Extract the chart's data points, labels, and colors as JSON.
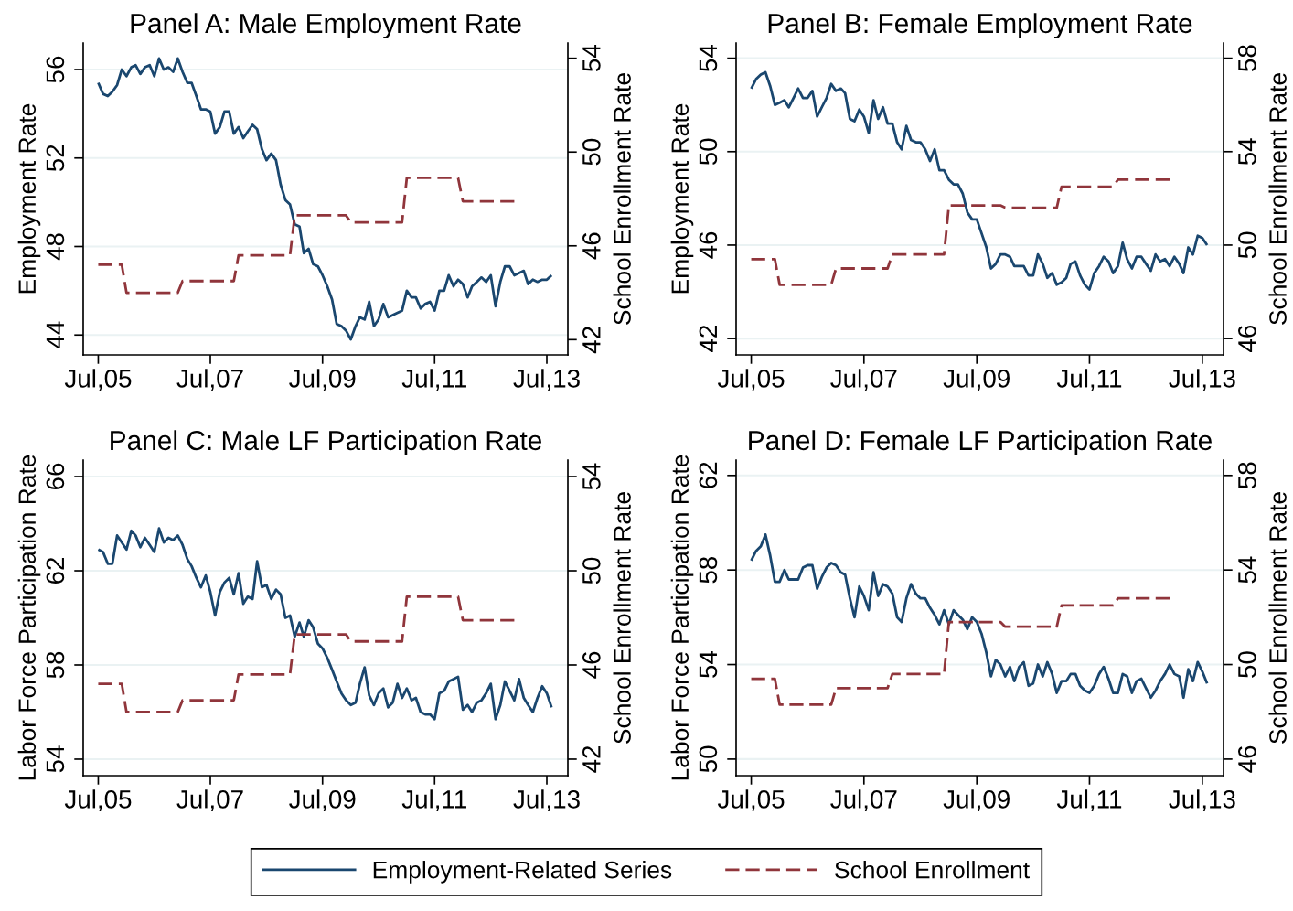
{
  "chart_data": [
    {
      "type": "line",
      "title": "Panel A: Male Employment Rate",
      "ylabel": "Employment Rate",
      "y2label": "School Enrollment Rate",
      "grid": "y",
      "legend": "bottom",
      "x": [
        "2005-07",
        "2005-08",
        "2005-09",
        "2005-10",
        "2005-11",
        "2005-12",
        "2006-01",
        "2006-02",
        "2006-03",
        "2006-04",
        "2006-05",
        "2006-06",
        "2006-07",
        "2006-08",
        "2006-09",
        "2006-10",
        "2006-11",
        "2006-12",
        "2007-01",
        "2007-02",
        "2007-03",
        "2007-04",
        "2007-05",
        "2007-06",
        "2007-07",
        "2007-08",
        "2007-09",
        "2007-10",
        "2007-11",
        "2007-12",
        "2008-01",
        "2008-02",
        "2008-03",
        "2008-04",
        "2008-05",
        "2008-06",
        "2008-07",
        "2008-08",
        "2008-09",
        "2008-10",
        "2008-11",
        "2008-12",
        "2009-01",
        "2009-02",
        "2009-03",
        "2009-04",
        "2009-05",
        "2009-06",
        "2009-07",
        "2009-08",
        "2009-09",
        "2009-10",
        "2009-11",
        "2009-12",
        "2010-01",
        "2010-02",
        "2010-03",
        "2010-04",
        "2010-05",
        "2010-06",
        "2010-07",
        "2010-08",
        "2010-09",
        "2010-10",
        "2010-11",
        "2010-12",
        "2011-01",
        "2011-02",
        "2011-03",
        "2011-04",
        "2011-05",
        "2011-06",
        "2011-07",
        "2011-08",
        "2011-09",
        "2011-10",
        "2011-11",
        "2011-12",
        "2012-01",
        "2012-02",
        "2012-03",
        "2012-04",
        "2012-05",
        "2012-06",
        "2012-07",
        "2012-08",
        "2012-09",
        "2012-10",
        "2012-11",
        "2012-12",
        "2013-01",
        "2013-02",
        "2013-03",
        "2013-04",
        "2013-05",
        "2013-06",
        "2013-07",
        "2013-08"
      ],
      "xlim": [
        "2005-03-25",
        "2013-11-15"
      ],
      "xticks": [
        {
          "value": "2005-07",
          "label": "Jul,05"
        },
        {
          "value": "2007-07",
          "label": "Jul,07"
        },
        {
          "value": "2009-07",
          "label": "Jul,09"
        },
        {
          "value": "2011-07",
          "label": "Jul,11"
        },
        {
          "value": "2013-07",
          "label": "Jul,13"
        }
      ],
      "ylim": [
        43.1,
        57.2
      ],
      "yticks": [
        44,
        48,
        52,
        56
      ],
      "y2lim": [
        41.35,
        54.65
      ],
      "y2ticks": [
        42,
        46,
        50,
        54
      ],
      "series": [
        {
          "name": "Employment-Related Series",
          "color": "#1a476f",
          "line_style": "solid",
          "values": [
            55.4,
            54.9,
            54.8,
            55.0,
            55.3,
            56.0,
            55.7,
            56.1,
            56.2,
            55.8,
            56.1,
            56.2,
            55.7,
            56.5,
            56.0,
            56.1,
            55.9,
            56.5,
            55.9,
            55.4,
            55.4,
            54.8,
            54.2,
            54.2,
            54.1,
            53.1,
            53.4,
            54.1,
            54.1,
            53.1,
            53.4,
            52.9,
            53.2,
            53.5,
            53.3,
            52.4,
            51.9,
            52.2,
            51.9,
            50.8,
            50.1,
            49.9,
            49.0,
            48.9,
            47.7,
            47.9,
            47.2,
            47.1,
            46.7,
            46.2,
            45.6,
            44.5,
            44.4,
            44.2,
            43.8,
            44.4,
            44.8,
            44.7,
            45.5,
            44.4,
            44.7,
            45.4,
            44.8,
            44.9,
            45.0,
            45.1,
            46.0,
            45.7,
            45.7,
            45.2,
            45.4,
            45.5,
            45.1,
            46.0,
            46.0,
            46.7,
            46.2,
            46.5,
            46.3,
            45.7,
            46.2,
            46.4,
            46.6,
            46.4,
            46.7,
            45.3,
            46.4,
            47.1,
            47.1,
            46.7,
            46.8,
            46.9,
            46.3,
            46.5,
            46.4,
            46.5,
            46.5,
            46.7
          ]
        },
        {
          "name": "School Enrollment",
          "color": "#90353b",
          "line_style": "dashed",
          "axis": "y2",
          "x": [
            "2005-07",
            "2005-12",
            "2006-01",
            "2006-12",
            "2007-01",
            "2007-12",
            "2008-01",
            "2008-12",
            "2009-01",
            "2009-12",
            "2010-01",
            "2010-12",
            "2011-01",
            "2011-12",
            "2012-01",
            "2012-12"
          ],
          "values": [
            45.2,
            45.2,
            44.0,
            44.0,
            44.5,
            44.5,
            45.6,
            45.6,
            47.3,
            47.3,
            47.0,
            47.0,
            48.9,
            48.9,
            47.9,
            47.9
          ]
        }
      ]
    },
    {
      "type": "line",
      "title": "Panel B: Female Employment Rate",
      "ylabel": "Employment Rate",
      "y2label": "School Enrollment Rate",
      "grid": "y",
      "x": [
        "2005-07",
        "2005-08",
        "2005-09",
        "2005-10",
        "2005-11",
        "2005-12",
        "2006-01",
        "2006-02",
        "2006-03",
        "2006-04",
        "2006-05",
        "2006-06",
        "2006-07",
        "2006-08",
        "2006-09",
        "2006-10",
        "2006-11",
        "2006-12",
        "2007-01",
        "2007-02",
        "2007-03",
        "2007-04",
        "2007-05",
        "2007-06",
        "2007-07",
        "2007-08",
        "2007-09",
        "2007-10",
        "2007-11",
        "2007-12",
        "2008-01",
        "2008-02",
        "2008-03",
        "2008-04",
        "2008-05",
        "2008-06",
        "2008-07",
        "2008-08",
        "2008-09",
        "2008-10",
        "2008-11",
        "2008-12",
        "2009-01",
        "2009-02",
        "2009-03",
        "2009-04",
        "2009-05",
        "2009-06",
        "2009-07",
        "2009-08",
        "2009-09",
        "2009-10",
        "2009-11",
        "2009-12",
        "2010-01",
        "2010-02",
        "2010-03",
        "2010-04",
        "2010-05",
        "2010-06",
        "2010-07",
        "2010-08",
        "2010-09",
        "2010-10",
        "2010-11",
        "2010-12",
        "2011-01",
        "2011-02",
        "2011-03",
        "2011-04",
        "2011-05",
        "2011-06",
        "2011-07",
        "2011-08",
        "2011-09",
        "2011-10",
        "2011-11",
        "2011-12",
        "2012-01",
        "2012-02",
        "2012-03",
        "2012-04",
        "2012-05",
        "2012-06",
        "2012-07",
        "2012-08",
        "2012-09",
        "2012-10",
        "2012-11",
        "2012-12",
        "2013-01",
        "2013-02",
        "2013-03",
        "2013-04",
        "2013-05",
        "2013-06",
        "2013-07",
        "2013-08"
      ],
      "xlim": [
        "2005-03-25",
        "2013-11-15"
      ],
      "xticks": [
        {
          "value": "2005-07",
          "label": "Jul,05"
        },
        {
          "value": "2007-07",
          "label": "Jul,07"
        },
        {
          "value": "2009-07",
          "label": "Jul,09"
        },
        {
          "value": "2011-07",
          "label": "Jul,11"
        },
        {
          "value": "2013-07",
          "label": "Jul,13"
        }
      ],
      "ylim": [
        41.3,
        54.65
      ],
      "yticks": [
        42,
        46,
        50,
        54
      ],
      "y2lim": [
        45.3,
        58.65
      ],
      "y2ticks": [
        46,
        50,
        54,
        58
      ],
      "series": [
        {
          "color": "#1a476f",
          "line_style": "solid",
          "values": [
            52.7,
            53.1,
            53.3,
            53.4,
            52.8,
            52.0,
            52.1,
            52.2,
            51.9,
            52.3,
            52.7,
            52.3,
            52.3,
            52.6,
            51.5,
            51.9,
            52.3,
            52.9,
            52.6,
            52.7,
            52.5,
            51.4,
            51.3,
            51.8,
            51.5,
            50.8,
            52.2,
            51.4,
            51.9,
            51.2,
            51.2,
            50.4,
            50.1,
            51.1,
            50.5,
            50.4,
            50.4,
            50.1,
            49.6,
            50.1,
            49.2,
            49.2,
            48.8,
            48.6,
            48.6,
            48.2,
            47.4,
            47.1,
            47.1,
            46.5,
            45.9,
            45.0,
            45.2,
            45.6,
            45.6,
            45.5,
            45.1,
            45.1,
            45.1,
            44.7,
            44.7,
            45.6,
            45.2,
            44.6,
            44.8,
            44.3,
            44.4,
            44.6,
            45.2,
            45.3,
            44.7,
            44.3,
            44.1,
            44.8,
            45.1,
            45.5,
            45.3,
            44.8,
            45.1,
            46.1,
            45.4,
            45.0,
            45.5,
            45.5,
            45.2,
            44.9,
            45.6,
            45.3,
            45.4,
            45.1,
            45.5,
            45.2,
            44.8,
            45.9,
            45.6,
            46.4,
            46.3,
            46.0
          ]
        },
        {
          "color": "#90353b",
          "line_style": "dashed",
          "axis": "y2",
          "x": [
            "2005-07",
            "2005-12",
            "2006-01",
            "2006-12",
            "2007-01",
            "2007-12",
            "2008-01",
            "2008-12",
            "2009-01",
            "2009-12",
            "2010-01",
            "2010-12",
            "2011-01",
            "2011-12",
            "2012-01",
            "2012-12"
          ],
          "values": [
            49.4,
            49.4,
            48.3,
            48.3,
            49.0,
            49.0,
            49.6,
            49.6,
            51.7,
            51.7,
            51.6,
            51.6,
            52.5,
            52.5,
            52.8,
            52.8
          ]
        }
      ]
    },
    {
      "type": "line",
      "title": "Panel C: Male LF Participation Rate",
      "ylabel": "Labor Force Participation Rate",
      "y2label": "School Enrollment Rate",
      "grid": "y",
      "x": [
        "2005-07",
        "2005-08",
        "2005-09",
        "2005-10",
        "2005-11",
        "2005-12",
        "2006-01",
        "2006-02",
        "2006-03",
        "2006-04",
        "2006-05",
        "2006-06",
        "2006-07",
        "2006-08",
        "2006-09",
        "2006-10",
        "2006-11",
        "2006-12",
        "2007-01",
        "2007-02",
        "2007-03",
        "2007-04",
        "2007-05",
        "2007-06",
        "2007-07",
        "2007-08",
        "2007-09",
        "2007-10",
        "2007-11",
        "2007-12",
        "2008-01",
        "2008-02",
        "2008-03",
        "2008-04",
        "2008-05",
        "2008-06",
        "2008-07",
        "2008-08",
        "2008-09",
        "2008-10",
        "2008-11",
        "2008-12",
        "2009-01",
        "2009-02",
        "2009-03",
        "2009-04",
        "2009-05",
        "2009-06",
        "2009-07",
        "2009-08",
        "2009-09",
        "2009-10",
        "2009-11",
        "2009-12",
        "2010-01",
        "2010-02",
        "2010-03",
        "2010-04",
        "2010-05",
        "2010-06",
        "2010-07",
        "2010-08",
        "2010-09",
        "2010-10",
        "2010-11",
        "2010-12",
        "2011-01",
        "2011-02",
        "2011-03",
        "2011-04",
        "2011-05",
        "2011-06",
        "2011-07",
        "2011-08",
        "2011-09",
        "2011-10",
        "2011-11",
        "2011-12",
        "2012-01",
        "2012-02",
        "2012-03",
        "2012-04",
        "2012-05",
        "2012-06",
        "2012-07",
        "2012-08",
        "2012-09",
        "2012-10",
        "2012-11",
        "2012-12",
        "2013-01",
        "2013-02",
        "2013-03",
        "2013-04",
        "2013-05",
        "2013-06",
        "2013-07",
        "2013-08"
      ],
      "xlim": [
        "2005-03-25",
        "2013-11-15"
      ],
      "xticks": [
        {
          "value": "2005-07",
          "label": "Jul,05"
        },
        {
          "value": "2007-07",
          "label": "Jul,07"
        },
        {
          "value": "2009-07",
          "label": "Jul,09"
        },
        {
          "value": "2011-07",
          "label": "Jul,11"
        },
        {
          "value": "2013-07",
          "label": "Jul,13"
        }
      ],
      "ylim": [
        53.3,
        66.7
      ],
      "yticks": [
        54,
        58,
        62,
        66
      ],
      "y2lim": [
        41.3,
        54.7
      ],
      "y2ticks": [
        42,
        46,
        50,
        54
      ],
      "series": [
        {
          "color": "#1a476f",
          "line_style": "solid",
          "values": [
            62.9,
            62.8,
            62.3,
            62.3,
            63.5,
            63.2,
            62.9,
            63.7,
            63.5,
            63.0,
            63.4,
            63.1,
            62.8,
            63.8,
            63.2,
            63.4,
            63.3,
            63.5,
            63.1,
            62.5,
            62.2,
            61.7,
            61.3,
            61.8,
            61.1,
            60.1,
            61.1,
            61.5,
            61.7,
            61.0,
            61.9,
            60.6,
            60.9,
            60.8,
            62.4,
            61.3,
            61.4,
            60.8,
            61.2,
            61.0,
            60.0,
            60.1,
            59.2,
            59.8,
            59.2,
            59.9,
            59.6,
            58.9,
            58.7,
            58.3,
            57.8,
            57.3,
            56.8,
            56.5,
            56.3,
            56.4,
            57.2,
            57.9,
            56.7,
            56.3,
            56.8,
            57.0,
            56.2,
            56.4,
            57.2,
            56.6,
            57.0,
            56.5,
            56.6,
            56.0,
            55.9,
            55.9,
            55.7,
            56.8,
            56.9,
            57.3,
            57.4,
            57.5,
            56.1,
            56.3,
            56.0,
            56.4,
            56.5,
            56.8,
            57.2,
            55.7,
            56.3,
            57.3,
            56.9,
            56.5,
            57.4,
            56.6,
            56.3,
            56.0,
            56.6,
            57.1,
            56.8,
            56.2
          ]
        },
        {
          "color": "#90353b",
          "line_style": "dashed",
          "axis": "y2",
          "x": [
            "2005-07",
            "2005-12",
            "2006-01",
            "2006-12",
            "2007-01",
            "2007-12",
            "2008-01",
            "2008-12",
            "2009-01",
            "2009-12",
            "2010-01",
            "2010-12",
            "2011-01",
            "2011-12",
            "2012-01",
            "2012-12"
          ],
          "values": [
            45.2,
            45.2,
            44.0,
            44.0,
            44.5,
            44.5,
            45.6,
            45.6,
            47.3,
            47.3,
            47.0,
            47.0,
            48.9,
            48.9,
            47.9,
            47.9
          ]
        }
      ]
    },
    {
      "type": "line",
      "title": "Panel D: Female LF Participation Rate",
      "ylabel": "Labor Force Participation Rate",
      "y2label": "School Enrollment Rate",
      "grid": "y",
      "x": [
        "2005-07",
        "2005-08",
        "2005-09",
        "2005-10",
        "2005-11",
        "2005-12",
        "2006-01",
        "2006-02",
        "2006-03",
        "2006-04",
        "2006-05",
        "2006-06",
        "2006-07",
        "2006-08",
        "2006-09",
        "2006-10",
        "2006-11",
        "2006-12",
        "2007-01",
        "2007-02",
        "2007-03",
        "2007-04",
        "2007-05",
        "2007-06",
        "2007-07",
        "2007-08",
        "2007-09",
        "2007-10",
        "2007-11",
        "2007-12",
        "2008-01",
        "2008-02",
        "2008-03",
        "2008-04",
        "2008-05",
        "2008-06",
        "2008-07",
        "2008-08",
        "2008-09",
        "2008-10",
        "2008-11",
        "2008-12",
        "2009-01",
        "2009-02",
        "2009-03",
        "2009-04",
        "2009-05",
        "2009-06",
        "2009-07",
        "2009-08",
        "2009-09",
        "2009-10",
        "2009-11",
        "2009-12",
        "2010-01",
        "2010-02",
        "2010-03",
        "2010-04",
        "2010-05",
        "2010-06",
        "2010-07",
        "2010-08",
        "2010-09",
        "2010-10",
        "2010-11",
        "2010-12",
        "2011-01",
        "2011-02",
        "2011-03",
        "2011-04",
        "2011-05",
        "2011-06",
        "2011-07",
        "2011-08",
        "2011-09",
        "2011-10",
        "2011-11",
        "2011-12",
        "2012-01",
        "2012-02",
        "2012-03",
        "2012-04",
        "2012-05",
        "2012-06",
        "2012-07",
        "2012-08",
        "2012-09",
        "2012-10",
        "2012-11",
        "2012-12",
        "2013-01",
        "2013-02",
        "2013-03",
        "2013-04",
        "2013-05",
        "2013-06",
        "2013-07",
        "2013-08"
      ],
      "xlim": [
        "2005-03-25",
        "2013-11-15"
      ],
      "xticks": [
        {
          "value": "2005-07",
          "label": "Jul,05"
        },
        {
          "value": "2007-07",
          "label": "Jul,07"
        },
        {
          "value": "2009-07",
          "label": "Jul,09"
        },
        {
          "value": "2011-07",
          "label": "Jul,11"
        },
        {
          "value": "2013-07",
          "label": "Jul,13"
        }
      ],
      "ylim": [
        49.3,
        62.65
      ],
      "yticks": [
        50,
        54,
        58,
        62
      ],
      "y2lim": [
        45.3,
        58.65
      ],
      "y2ticks": [
        46,
        50,
        54,
        58
      ],
      "series": [
        {
          "color": "#1a476f",
          "line_style": "solid",
          "values": [
            58.4,
            58.8,
            59.0,
            59.5,
            58.6,
            57.5,
            57.5,
            58.0,
            57.6,
            57.6,
            57.6,
            58.1,
            58.2,
            58.2,
            57.2,
            57.7,
            58.1,
            58.3,
            58.2,
            57.9,
            57.8,
            56.8,
            56.0,
            57.3,
            56.9,
            56.3,
            57.9,
            56.9,
            57.4,
            57.3,
            57.0,
            56.0,
            55.8,
            56.8,
            57.4,
            57.0,
            56.8,
            56.8,
            56.4,
            56.1,
            55.7,
            56.3,
            55.7,
            56.3,
            56.1,
            55.9,
            55.5,
            56.0,
            55.8,
            55.3,
            54.5,
            53.5,
            54.2,
            54.0,
            53.5,
            53.9,
            53.3,
            53.9,
            54.1,
            53.1,
            53.2,
            54.0,
            53.5,
            54.1,
            53.6,
            52.8,
            53.3,
            53.3,
            53.6,
            53.6,
            53.1,
            52.9,
            52.8,
            53.1,
            53.6,
            53.9,
            53.4,
            52.8,
            52.8,
            53.6,
            53.5,
            52.8,
            53.3,
            53.4,
            53.0,
            52.6,
            52.9,
            53.3,
            53.6,
            54.0,
            53.6,
            53.5,
            52.6,
            53.8,
            53.3,
            54.1,
            53.7,
            53.2
          ]
        },
        {
          "color": "#90353b",
          "line_style": "dashed",
          "axis": "y2",
          "x": [
            "2005-07",
            "2005-12",
            "2006-01",
            "2006-12",
            "2007-01",
            "2007-12",
            "2008-01",
            "2008-12",
            "2009-01",
            "2009-12",
            "2010-01",
            "2010-12",
            "2011-01",
            "2011-12",
            "2012-01",
            "2012-12"
          ],
          "values": [
            49.4,
            49.4,
            48.3,
            48.3,
            49.0,
            49.0,
            49.6,
            49.6,
            51.8,
            51.8,
            51.6,
            51.6,
            52.5,
            52.5,
            52.8,
            52.8
          ]
        }
      ]
    }
  ]
}
